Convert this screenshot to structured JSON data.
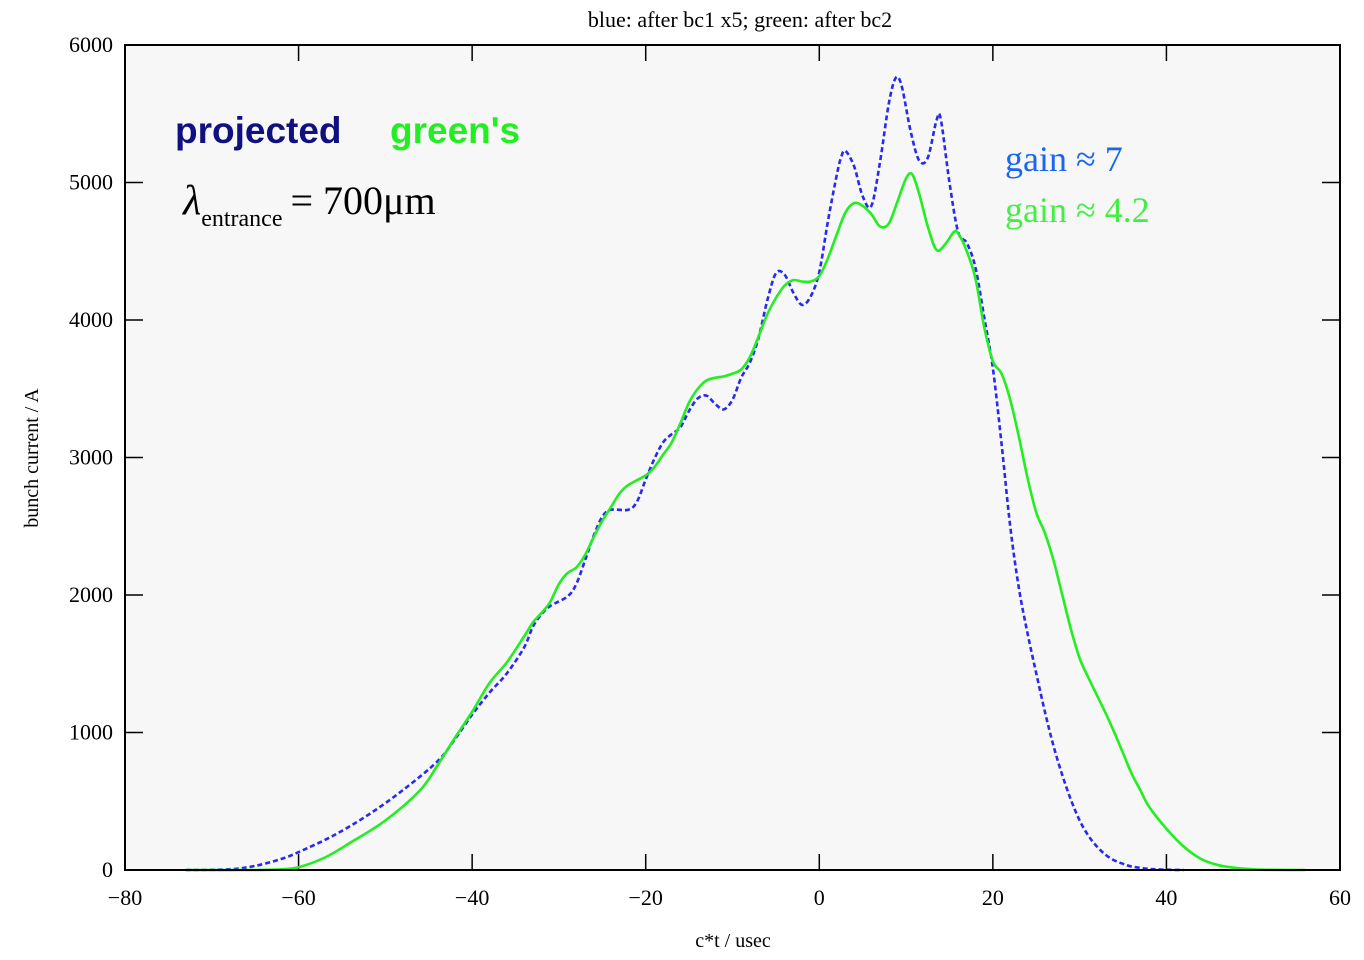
{
  "chart_data": {
    "type": "line",
    "title": "blue: after bc1 x5;  green: after bc2",
    "xlabel": "c*t / usec",
    "ylabel": "bunch current / A",
    "xlim": [
      -80,
      60
    ],
    "ylim": [
      0,
      6000
    ],
    "x_ticks": [
      -80,
      -60,
      -40,
      -20,
      0,
      20,
      40,
      60
    ],
    "y_ticks": [
      0,
      1000,
      2000,
      3000,
      4000,
      5000,
      6000
    ],
    "x_tick_labels": [
      "−80",
      "−60",
      "−40",
      "−20",
      "0",
      "20",
      "40",
      "60"
    ],
    "y_tick_labels": [
      "0",
      "1000",
      "2000",
      "3000",
      "4000",
      "5000",
      "6000"
    ],
    "grid": false,
    "series": [
      {
        "color": "#2a2aee",
        "dash": true,
        "points": [
          [
            -73,
            0
          ],
          [
            -68,
            5
          ],
          [
            -65,
            30
          ],
          [
            -62,
            80
          ],
          [
            -60,
            130
          ],
          [
            -56,
            250
          ],
          [
            -52,
            400
          ],
          [
            -48,
            580
          ],
          [
            -44,
            790
          ],
          [
            -42,
            950
          ],
          [
            -40,
            1130
          ],
          [
            -38,
            1290
          ],
          [
            -36,
            1430
          ],
          [
            -34,
            1620
          ],
          [
            -33,
            1770
          ],
          [
            -32,
            1860
          ],
          [
            -31,
            1920
          ],
          [
            -29,
            1990
          ],
          [
            -28,
            2080
          ],
          [
            -27,
            2250
          ],
          [
            -26,
            2430
          ],
          [
            -25,
            2570
          ],
          [
            -24,
            2620
          ],
          [
            -22,
            2620
          ],
          [
            -21,
            2680
          ],
          [
            -20,
            2840
          ],
          [
            -19,
            2990
          ],
          [
            -18,
            3110
          ],
          [
            -17,
            3170
          ],
          [
            -16,
            3220
          ],
          [
            -15,
            3340
          ],
          [
            -14,
            3430
          ],
          [
            -13,
            3450
          ],
          [
            -12,
            3390
          ],
          [
            -11,
            3350
          ],
          [
            -10,
            3420
          ],
          [
            -9,
            3580
          ],
          [
            -8,
            3690
          ],
          [
            -7,
            3870
          ],
          [
            -6,
            4140
          ],
          [
            -5,
            4340
          ],
          [
            -4,
            4330
          ],
          [
            -3,
            4200
          ],
          [
            -2,
            4110
          ],
          [
            -1,
            4170
          ],
          [
            0,
            4350
          ],
          [
            1,
            4720
          ],
          [
            2,
            5050
          ],
          [
            2.5,
            5180
          ],
          [
            3,
            5230
          ],
          [
            4,
            5120
          ],
          [
            5,
            4900
          ],
          [
            6,
            4830
          ],
          [
            7,
            5150
          ],
          [
            8,
            5570
          ],
          [
            8.8,
            5760
          ],
          [
            9.5,
            5700
          ],
          [
            10.5,
            5380
          ],
          [
            11.5,
            5160
          ],
          [
            12.5,
            5180
          ],
          [
            13.5,
            5450
          ],
          [
            14,
            5460
          ],
          [
            15,
            5000
          ],
          [
            16,
            4640
          ],
          [
            17,
            4560
          ],
          [
            18,
            4380
          ],
          [
            19,
            4020
          ],
          [
            20,
            3650
          ],
          [
            21,
            3100
          ],
          [
            22,
            2500
          ],
          [
            23,
            2050
          ],
          [
            24,
            1720
          ],
          [
            25,
            1430
          ],
          [
            26,
            1150
          ],
          [
            27,
            900
          ],
          [
            28,
            690
          ],
          [
            29,
            510
          ],
          [
            30,
            360
          ],
          [
            31,
            250
          ],
          [
            32,
            170
          ],
          [
            33,
            110
          ],
          [
            34,
            70
          ],
          [
            35,
            45
          ],
          [
            36,
            25
          ],
          [
            38,
            8
          ],
          [
            40,
            2
          ],
          [
            42,
            0
          ]
        ]
      },
      {
        "color": "#22ee22",
        "dash": false,
        "points": [
          [
            -73,
            0
          ],
          [
            -65,
            0
          ],
          [
            -62,
            5
          ],
          [
            -60,
            20
          ],
          [
            -57,
            90
          ],
          [
            -54,
            200
          ],
          [
            -50,
            360
          ],
          [
            -46,
            580
          ],
          [
            -44,
            760
          ],
          [
            -42,
            960
          ],
          [
            -40,
            1150
          ],
          [
            -38,
            1360
          ],
          [
            -36,
            1510
          ],
          [
            -34,
            1700
          ],
          [
            -33,
            1800
          ],
          [
            -32,
            1870
          ],
          [
            -31,
            1950
          ],
          [
            -30,
            2080
          ],
          [
            -29,
            2160
          ],
          [
            -28,
            2200
          ],
          [
            -27,
            2290
          ],
          [
            -26,
            2420
          ],
          [
            -25,
            2540
          ],
          [
            -24,
            2640
          ],
          [
            -23,
            2740
          ],
          [
            -22,
            2800
          ],
          [
            -20,
            2870
          ],
          [
            -19,
            2930
          ],
          [
            -18,
            3020
          ],
          [
            -17,
            3110
          ],
          [
            -16,
            3250
          ],
          [
            -15,
            3400
          ],
          [
            -14,
            3500
          ],
          [
            -13,
            3560
          ],
          [
            -12,
            3580
          ],
          [
            -11,
            3590
          ],
          [
            -10,
            3610
          ],
          [
            -9,
            3640
          ],
          [
            -8,
            3730
          ],
          [
            -7,
            3880
          ],
          [
            -6,
            4040
          ],
          [
            -5,
            4160
          ],
          [
            -4,
            4250
          ],
          [
            -3,
            4290
          ],
          [
            -2,
            4280
          ],
          [
            -1,
            4280
          ],
          [
            0,
            4320
          ],
          [
            1,
            4450
          ],
          [
            2,
            4620
          ],
          [
            3,
            4780
          ],
          [
            4,
            4850
          ],
          [
            5,
            4830
          ],
          [
            6,
            4770
          ],
          [
            7,
            4680
          ],
          [
            8,
            4700
          ],
          [
            9,
            4860
          ],
          [
            10,
            5030
          ],
          [
            10.7,
            5060
          ],
          [
            11.5,
            4920
          ],
          [
            12.5,
            4680
          ],
          [
            13.5,
            4510
          ],
          [
            14.5,
            4550
          ],
          [
            15.5,
            4640
          ],
          [
            16,
            4630
          ],
          [
            17,
            4500
          ],
          [
            18,
            4300
          ],
          [
            19,
            3950
          ],
          [
            20,
            3700
          ],
          [
            21,
            3610
          ],
          [
            22,
            3420
          ],
          [
            23,
            3150
          ],
          [
            24,
            2850
          ],
          [
            25,
            2600
          ],
          [
            26,
            2450
          ],
          [
            27,
            2250
          ],
          [
            28,
            2000
          ],
          [
            29,
            1750
          ],
          [
            30,
            1540
          ],
          [
            31,
            1400
          ],
          [
            32,
            1270
          ],
          [
            33,
            1140
          ],
          [
            34,
            1000
          ],
          [
            35,
            850
          ],
          [
            36,
            700
          ],
          [
            37,
            580
          ],
          [
            38,
            460
          ],
          [
            40,
            300
          ],
          [
            42,
            170
          ],
          [
            44,
            80
          ],
          [
            46,
            35
          ],
          [
            48,
            15
          ],
          [
            50,
            5
          ],
          [
            52,
            1
          ],
          [
            56,
            0
          ]
        ]
      }
    ],
    "annotations": {
      "projected": "projected",
      "greens": "green's",
      "lambda_symbol": "λ",
      "lambda_subscript": "entrance",
      "lambda_value": "= 700μm",
      "gain_blue": "gain ≈ 7",
      "gain_green": "gain ≈ 4.2"
    },
    "colors": {
      "projected_text": "#101080",
      "greens_text": "#22ee22",
      "gain_blue_text": "#1a66ee",
      "gain_green_text": "#44ee44",
      "axes": "#000000",
      "plot_background": "#f7f7f7"
    }
  }
}
